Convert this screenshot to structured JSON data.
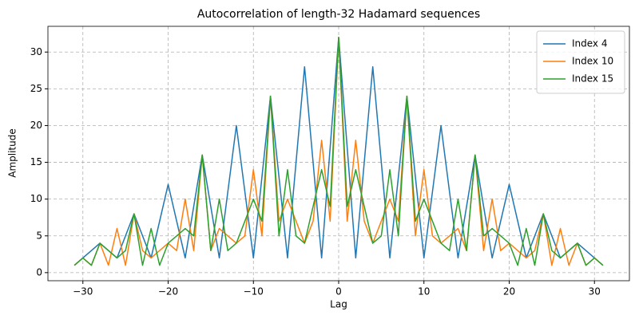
{
  "chart_data": {
    "type": "line",
    "title": "Autocorrelation of length-32 Hadamard sequences",
    "xlabel": "Lag",
    "ylabel": "Amplitude",
    "x": [
      -31,
      -30,
      -29,
      -28,
      -27,
      -26,
      -25,
      -24,
      -23,
      -22,
      -21,
      -20,
      -19,
      -18,
      -17,
      -16,
      -15,
      -14,
      -13,
      -12,
      -11,
      -10,
      -9,
      -8,
      -7,
      -6,
      -5,
      -4,
      -3,
      -2,
      -1,
      0,
      1,
      2,
      3,
      4,
      5,
      6,
      7,
      8,
      9,
      10,
      11,
      12,
      13,
      14,
      15,
      16,
      17,
      18,
      19,
      20,
      21,
      22,
      23,
      24,
      25,
      26,
      27,
      28,
      29,
      30,
      31
    ],
    "series": [
      {
        "name": "Index 4",
        "color": "#1f77b4",
        "values": [
          1,
          2,
          3,
          4,
          3,
          2,
          5,
          8,
          5,
          2,
          7,
          12,
          7,
          2,
          9,
          16,
          9,
          2,
          11,
          20,
          11,
          2,
          13,
          24,
          13,
          2,
          15,
          28,
          15,
          2,
          17,
          32,
          17,
          2,
          15,
          28,
          15,
          2,
          13,
          24,
          13,
          2,
          11,
          20,
          11,
          2,
          9,
          16,
          9,
          2,
          7,
          12,
          7,
          2,
          5,
          8,
          5,
          2,
          3,
          4,
          3,
          2,
          1
        ]
      },
      {
        "name": "Index 10",
        "color": "#ff7f0e",
        "values": [
          1,
          2,
          1,
          4,
          1,
          6,
          1,
          8,
          3,
          2,
          3,
          4,
          3,
          10,
          3,
          16,
          3,
          6,
          5,
          4,
          5,
          14,
          5,
          24,
          7,
          10,
          7,
          4,
          7,
          18,
          7,
          32,
          7,
          18,
          7,
          4,
          7,
          10,
          7,
          24,
          5,
          14,
          5,
          4,
          5,
          6,
          3,
          16,
          3,
          10,
          3,
          4,
          3,
          2,
          3,
          8,
          1,
          6,
          1,
          4,
          1,
          2,
          1
        ]
      },
      {
        "name": "Index 15",
        "color": "#2ca02c",
        "values": [
          1,
          2,
          1,
          4,
          3,
          2,
          3,
          8,
          1,
          6,
          1,
          4,
          5,
          6,
          5,
          16,
          3,
          10,
          3,
          4,
          7,
          10,
          7,
          24,
          5,
          14,
          5,
          4,
          9,
          14,
          9,
          32,
          9,
          14,
          9,
          4,
          5,
          14,
          5,
          24,
          7,
          10,
          7,
          4,
          3,
          10,
          3,
          16,
          5,
          6,
          5,
          4,
          1,
          6,
          1,
          8,
          3,
          2,
          3,
          4,
          1,
          2,
          1
        ]
      }
    ],
    "xlim": [
      -34.1,
      34.1
    ],
    "ylim": [
      -1.1,
      33.5
    ],
    "xticks": [
      {
        "value": -30,
        "label": "−30"
      },
      {
        "value": -20,
        "label": "−20"
      },
      {
        "value": -10,
        "label": "−10"
      },
      0,
      10,
      20,
      30
    ],
    "yticks": [
      0,
      5,
      10,
      15,
      20,
      25,
      30
    ],
    "grid": true,
    "legend": "upper right"
  }
}
